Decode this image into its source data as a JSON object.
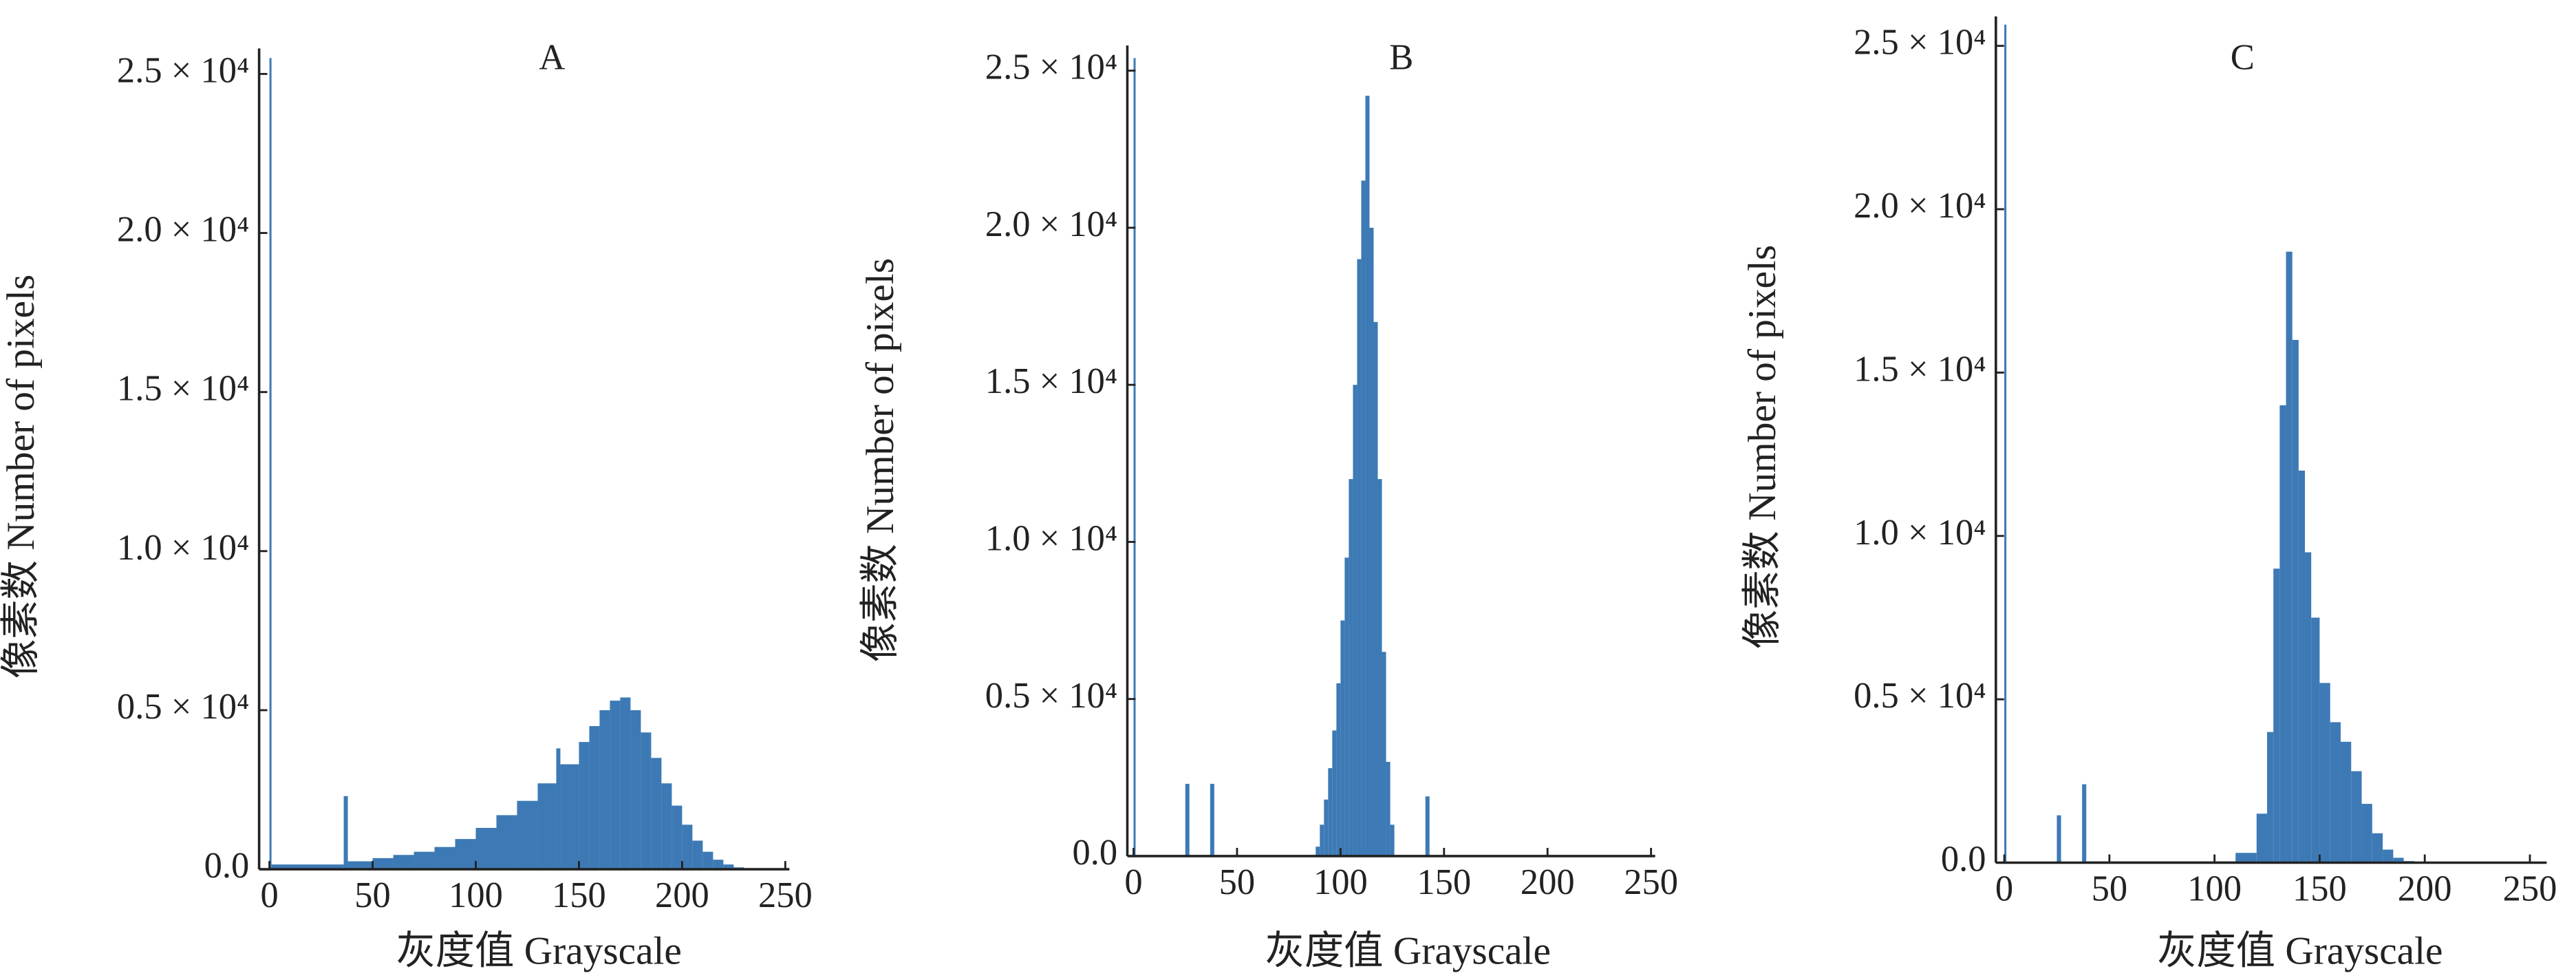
{
  "chart_data": [
    {
      "type": "histogram",
      "title": "A",
      "x_label": "灰度值 Grayscale",
      "y_label": "像素数 Number of pixels",
      "color": "#3d7ab5",
      "bins": [
        0,
        1,
        36,
        38,
        50,
        60,
        70,
        80,
        90,
        100,
        110,
        120,
        130,
        139,
        141,
        150,
        155,
        160,
        165,
        170,
        175,
        180,
        185,
        190,
        195,
        200,
        205,
        210,
        215,
        220,
        225,
        230
      ],
      "values": [
        25500,
        150,
        2300,
        250,
        350,
        450,
        550,
        700,
        950,
        1300,
        1700,
        2150,
        2700,
        3800,
        3300,
        4000,
        4500,
        5000,
        5300,
        5400,
        5000,
        4300,
        3500,
        2700,
        2000,
        1400,
        900,
        550,
        300,
        150,
        60
      ],
      "xlim": [
        -5,
        252
      ],
      "ylim": [
        0,
        25800
      ],
      "xticks": [
        0,
        50,
        100,
        150,
        200,
        250
      ],
      "yticks": [
        {
          "value": 0,
          "label": "0.0"
        },
        {
          "value": 5000,
          "label": "0.5 × 10⁴"
        },
        {
          "value": 10000,
          "label": "1.0 × 10⁴"
        },
        {
          "value": 15000,
          "label": "1.5 × 10⁴"
        },
        {
          "value": 20000,
          "label": "2.0 × 10⁴"
        },
        {
          "value": 25000,
          "label": "2.5 × 10⁴"
        }
      ]
    },
    {
      "type": "histogram",
      "title": "B",
      "x_label": "灰度值 Grayscale",
      "y_label": "像素数 Number of pixels",
      "color": "#3d7ab5",
      "bins": [
        0,
        1,
        25,
        27,
        37,
        39,
        88,
        90,
        92,
        94,
        96,
        98,
        100,
        102,
        104,
        106,
        108,
        110,
        112,
        114,
        116,
        118,
        120,
        122,
        124,
        126,
        141,
        143
      ],
      "values": [
        25400,
        0,
        2300,
        0,
        2300,
        0,
        300,
        1000,
        1800,
        2800,
        4000,
        5500,
        7500,
        9500,
        12000,
        15000,
        19000,
        21500,
        24200,
        20000,
        17000,
        12000,
        6500,
        3000,
        1000,
        0,
        1900
      ],
      "xlim": [
        -3,
        252
      ],
      "ylim": [
        0,
        25800
      ],
      "xticks": [
        0,
        50,
        100,
        150,
        200,
        250
      ],
      "yticks": [
        {
          "value": 0,
          "label": "0.0"
        },
        {
          "value": 5000,
          "label": "0.5 × 10⁴"
        },
        {
          "value": 10000,
          "label": "1.0 × 10⁴"
        },
        {
          "value": 15000,
          "label": "1.5 × 10⁴"
        },
        {
          "value": 20000,
          "label": "2.0 × 10⁴"
        },
        {
          "value": 25000,
          "label": "2.5 × 10⁴"
        }
      ]
    },
    {
      "type": "histogram",
      "title": "C",
      "x_label": "灰度值 Grayscale",
      "y_label": "像素数 Number of pixels",
      "color": "#3d7ab5",
      "bins": [
        0,
        1,
        25,
        27,
        37,
        39,
        110,
        120,
        125,
        128,
        131,
        134,
        137,
        140,
        143,
        146,
        150,
        155,
        160,
        165,
        170,
        175,
        180,
        185,
        190,
        195
      ],
      "values": [
        25650,
        0,
        1450,
        0,
        2400,
        40,
        300,
        1500,
        4000,
        9000,
        14000,
        18700,
        16000,
        12000,
        9500,
        7500,
        5500,
        4300,
        3700,
        2800,
        1800,
        900,
        400,
        150,
        50
      ],
      "xlim": [
        -4,
        258
      ],
      "ylim": [
        0,
        25900
      ],
      "xticks": [
        0,
        50,
        100,
        150,
        200,
        250
      ],
      "yticks": [
        {
          "value": 0,
          "label": "0.0"
        },
        {
          "value": 5000,
          "label": "0.5 × 10⁴"
        },
        {
          "value": 10000,
          "label": "1.0 × 10⁴"
        },
        {
          "value": 15000,
          "label": "1.5 × 10⁴"
        },
        {
          "value": 20000,
          "label": "2.0 × 10⁴"
        },
        {
          "value": 25000,
          "label": "2.5 × 10⁴"
        }
      ]
    }
  ]
}
